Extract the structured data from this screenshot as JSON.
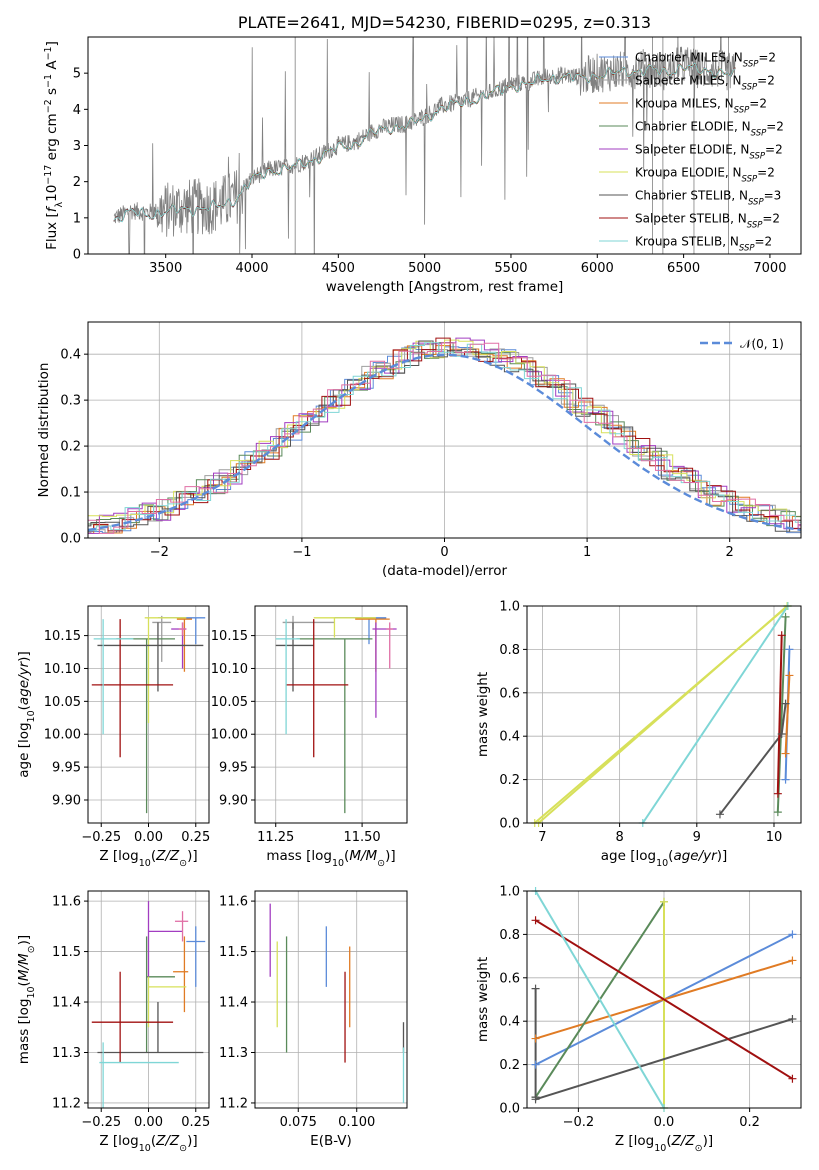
{
  "colors": {
    "chabrier_miles": "#5b8bd9",
    "salpeter_miles": "#9e9e9e",
    "kroupa_miles": "#e07b24",
    "chabrier_elodie": "#5a8a5a",
    "salpeter_elodie": "#a23dc1",
    "kroupa_elodie": "#d7e05a",
    "chabrier_stelib": "#555555",
    "salpeter_stelib": "#a01010",
    "kroupa_stelib": "#7fd6d6",
    "pink": "#e06fa5",
    "data": "#808080",
    "normal": "#5b8bd9"
  },
  "chart_data": [
    {
      "id": "spectrum",
      "type": "line",
      "title": "PLATE=2641, MJD=54230, FIBERID=0295, z=0.313",
      "xlabel": "wavelength [Angstrom, rest frame]",
      "ylabel": "Flux [f_λ 10^-17 erg cm^-2 s^-1 A^-1]",
      "xlim": [
        3050,
        7180
      ],
      "ylim": [
        0,
        6
      ],
      "xticks": [
        "3500",
        "4000",
        "4500",
        "5000",
        "5500",
        "6000",
        "6500",
        "7000"
      ],
      "yticks": [
        "0",
        "1",
        "2",
        "3",
        "4",
        "5"
      ],
      "legend_position": "upper right",
      "legend": [
        "Chabrier MILES, N_SSP=2",
        "Salpeter MILES, N_SSP=2",
        "Kroupa MILES, N_SSP=2",
        "Chabrier ELODIE, N_SSP=2",
        "Salpeter ELODIE, N_SSP=2",
        "Kroupa ELODIE, N_SSP=2",
        "Chabrier STELIB, N_SSP=3",
        "Salpeter STELIB, N_SSP=2",
        "Kroupa STELIB, N_SSP=2"
      ],
      "continuum": {
        "x": [
          3200,
          3300,
          3400,
          3500,
          3600,
          3700,
          3800,
          3900,
          4000,
          4100,
          4200,
          4300,
          4400,
          4500,
          4600,
          4700,
          4800,
          4900,
          5000,
          5100,
          5200,
          5300,
          5400,
          5500,
          5600,
          5700,
          5800,
          5900,
          6000,
          6100,
          6200,
          6300,
          6400,
          6500,
          6600,
          6700,
          6800
        ],
        "y": [
          1.0,
          1.2,
          1.15,
          1.2,
          1.3,
          1.3,
          1.35,
          1.55,
          2.1,
          2.35,
          2.4,
          2.55,
          2.75,
          3.0,
          3.1,
          3.4,
          3.55,
          3.6,
          3.8,
          4.1,
          4.2,
          4.35,
          4.5,
          4.7,
          4.75,
          4.9,
          4.95,
          4.9,
          5.0,
          5.05,
          5.1,
          5.15,
          5.05,
          5.25,
          5.1,
          5.1,
          5.0
        ]
      }
    },
    {
      "id": "residuals",
      "type": "line",
      "xlabel": "(data-model)/error",
      "ylabel": "Normed distribution",
      "xlim": [
        -2.5,
        2.5
      ],
      "ylim": [
        0,
        0.47
      ],
      "xticks": [
        "−2",
        "−1",
        "0",
        "1",
        "2"
      ],
      "yticks": [
        "0.0",
        "0.1",
        "0.2",
        "0.3",
        "0.4"
      ],
      "grid": true,
      "legend": [
        "𝒩(0, 1)"
      ],
      "legend_position": "upper right"
    },
    {
      "id": "age_vs_Z",
      "type": "scatter",
      "xlabel": "Z [log10(Z/Z⊙)]",
      "ylabel": "age  [log10(age/yr)]",
      "xlim": [
        -0.32,
        0.32
      ],
      "ylim": [
        9.865,
        10.195
      ],
      "xticks": [
        "−0.25",
        "0.00",
        "0.25"
      ],
      "yticks": [
        "9.90",
        "9.95",
        "10.00",
        "10.05",
        "10.10",
        "10.15"
      ],
      "grid": true,
      "points": [
        {
          "c": "chabrier_miles",
          "x": 0.25,
          "y": 10.177,
          "xerr": [
            0.2,
            0.05
          ],
          "yerr": [
            0.04,
            0.0
          ]
        },
        {
          "c": "salpeter_miles",
          "x": 0.07,
          "y": 10.17,
          "xerr": [
            0.05,
            0.05
          ],
          "yerr": [
            0.06,
            0.01
          ]
        },
        {
          "c": "kroupa_miles",
          "x": 0.19,
          "y": 10.175,
          "xerr": [
            0.04,
            0.04
          ],
          "yerr": [
            0.08,
            0.0
          ]
        },
        {
          "c": "chabrier_elodie",
          "x": -0.01,
          "y": 10.145,
          "xerr": [
            0.16,
            0.15
          ],
          "yerr": [
            0.265,
            0.0
          ]
        },
        {
          "c": "salpeter_elodie",
          "x": 0.18,
          "y": 10.16,
          "xerr": [
            0.06,
            0.02
          ],
          "yerr": [
            0.06,
            0.01
          ]
        },
        {
          "c": "kroupa_elodie",
          "x": 0.0,
          "y": 10.177,
          "xerr": [
            0.02,
            0.2
          ],
          "yerr": [
            0.16,
            0.0
          ]
        },
        {
          "c": "chabrier_stelib",
          "x": 0.05,
          "y": 10.135,
          "xerr": [
            0.32,
            0.24
          ],
          "yerr": [
            0.07,
            0.035
          ]
        },
        {
          "c": "salpeter_stelib",
          "x": -0.15,
          "y": 10.075,
          "xerr": [
            0.15,
            0.28
          ],
          "yerr": [
            0.11,
            0.1
          ]
        },
        {
          "c": "kroupa_stelib",
          "x": -0.24,
          "y": 10.145,
          "xerr": [
            0.05,
            0.16
          ],
          "yerr": [
            0.145,
            0.03
          ]
        },
        {
          "c": "pink",
          "x": 0.18,
          "y": 10.16,
          "xerr": [
            0.02,
            0.02
          ],
          "yerr": [
            0.01,
            0.01
          ]
        }
      ]
    },
    {
      "id": "age_vs_mass",
      "type": "scatter",
      "xlabel": "mass [log10(M/M⊙)]",
      "ylabel": "",
      "xlim": [
        11.19,
        11.63
      ],
      "ylim": [
        9.865,
        10.195
      ],
      "xticks": [
        "11.25",
        "11.50"
      ],
      "yticks": [
        "9.90",
        "9.95",
        "10.00",
        "10.05",
        "10.10",
        "10.15"
      ],
      "grid": true,
      "points": [
        {
          "c": "chabrier_miles",
          "x": 11.52,
          "y": 10.177,
          "xerr": [
            0.1,
            0.05
          ],
          "yerr": [
            0.04,
            0.0
          ]
        },
        {
          "c": "salpeter_miles",
          "x": 11.3,
          "y": 10.17,
          "xerr": [
            0.03,
            0.12
          ],
          "yerr": [
            0.01,
            0.01
          ]
        },
        {
          "c": "kroupa_miles",
          "x": 11.54,
          "y": 10.175,
          "xerr": [
            0.06,
            0.04
          ],
          "yerr": [
            0.08,
            0.0
          ]
        },
        {
          "c": "chabrier_elodie",
          "x": 11.45,
          "y": 10.145,
          "xerr": [
            0.14,
            0.08
          ],
          "yerr": [
            0.265,
            0.0
          ]
        },
        {
          "c": "salpeter_elodie",
          "x": 11.54,
          "y": 10.16,
          "xerr": [
            0.01,
            0.06
          ],
          "yerr": [
            0.135,
            0.01
          ]
        },
        {
          "c": "kroupa_elodie",
          "x": 11.42,
          "y": 10.177,
          "xerr": [
            0.06,
            0.12
          ],
          "yerr": [
            0.03,
            0.0
          ]
        },
        {
          "c": "chabrier_stelib",
          "x": 11.3,
          "y": 10.135,
          "xerr": [
            0.05,
            0.06
          ],
          "yerr": [
            0.07,
            0.035
          ]
        },
        {
          "c": "salpeter_stelib",
          "x": 11.36,
          "y": 10.075,
          "xerr": [
            0.08,
            0.1
          ],
          "yerr": [
            0.11,
            0.1
          ]
        },
        {
          "c": "kroupa_stelib",
          "x": 11.28,
          "y": 10.145,
          "xerr": [
            0.03,
            0.04
          ],
          "yerr": [
            0.145,
            0.03
          ]
        },
        {
          "c": "pink",
          "x": 11.58,
          "y": 10.16,
          "xerr": [
            0.01,
            0.01
          ],
          "yerr": [
            0.06,
            0.01
          ]
        }
      ]
    },
    {
      "id": "weight_vs_age",
      "type": "line",
      "xlabel": "age  [log10(age/yr)]",
      "ylabel": "mass weight",
      "xlim": [
        6.8,
        10.35
      ],
      "ylim": [
        0,
        1
      ],
      "xticks": [
        "7",
        "8",
        "9",
        "10"
      ],
      "yticks": [
        "0.0",
        "0.2",
        "0.4",
        "0.6",
        "0.8",
        "1.0"
      ],
      "grid": true,
      "series": [
        {
          "c": "chabrier_miles",
          "x": [
            10.15,
            10.2
          ],
          "y": [
            0.2,
            0.8
          ]
        },
        {
          "c": "kroupa_miles",
          "x": [
            10.15,
            10.2
          ],
          "y": [
            0.32,
            0.68
          ]
        },
        {
          "c": "chabrier_elodie",
          "x": [
            10.05,
            10.15
          ],
          "y": [
            0.05,
            0.95
          ]
        },
        {
          "c": "kroupa_elodie",
          "x": [
            6.9,
            10.18
          ],
          "y": [
            0.0,
            1.0
          ]
        },
        {
          "c": "kroupa_elodie",
          "x": [
            6.95,
            10.17
          ],
          "y": [
            0.0,
            1.0
          ]
        },
        {
          "c": "chabrier_stelib",
          "x": [
            9.3,
            10.1,
            10.15
          ],
          "y": [
            0.04,
            0.41,
            0.55
          ]
        },
        {
          "c": "salpeter_stelib",
          "x": [
            10.05,
            10.1
          ],
          "y": [
            0.135,
            0.865
          ]
        },
        {
          "c": "kroupa_stelib",
          "x": [
            8.3,
            10.18
          ],
          "y": [
            0.0,
            1.0
          ]
        }
      ]
    },
    {
      "id": "mass_vs_Z",
      "type": "scatter",
      "xlabel": "Z [log10(Z/Z⊙)]",
      "ylabel": "mass [log10(M/M⊙)]",
      "xlim": [
        -0.32,
        0.32
      ],
      "ylim": [
        11.19,
        11.62
      ],
      "xticks": [
        "−0.25",
        "0.00",
        "0.25"
      ],
      "yticks": [
        "11.2",
        "11.3",
        "11.4",
        "11.5",
        "11.6"
      ],
      "grid": true,
      "points": [
        {
          "c": "chabrier_miles",
          "x": 0.25,
          "y": 11.52,
          "xerr": [
            0.05,
            0.05
          ],
          "yerr": [
            0.09,
            0.03
          ]
        },
        {
          "c": "kroupa_miles",
          "x": 0.19,
          "y": 11.46,
          "xerr": [
            0.06,
            0.02
          ],
          "yerr": [
            0.08,
            0.07
          ]
        },
        {
          "c": "chabrier_elodie",
          "x": -0.01,
          "y": 11.45,
          "xerr": [
            0.0,
            0.15
          ],
          "yerr": [
            0.15,
            0.08
          ]
        },
        {
          "c": "salpeter_elodie",
          "x": 0.0,
          "y": 11.54,
          "xerr": [
            0.0,
            0.18
          ],
          "yerr": [
            0.09,
            0.06
          ]
        },
        {
          "c": "kroupa_elodie",
          "x": 0.0,
          "y": 11.43,
          "xerr": [
            0.0,
            0.2
          ],
          "yerr": [
            0.08,
            0.02
          ]
        },
        {
          "c": "chabrier_stelib",
          "x": 0.05,
          "y": 11.3,
          "xerr": [
            0.32,
            0.24
          ],
          "yerr": [
            0.0,
            0.1
          ]
        },
        {
          "c": "salpeter_stelib",
          "x": -0.15,
          "y": 11.36,
          "xerr": [
            0.15,
            0.28
          ],
          "yerr": [
            0.08,
            0.1
          ]
        },
        {
          "c": "kroupa_stelib",
          "x": -0.24,
          "y": 11.28,
          "xerr": [
            0.02,
            0.4
          ],
          "yerr": [
            0.09,
            0.04
          ]
        },
        {
          "c": "pink",
          "x": 0.18,
          "y": 11.56,
          "xerr": [
            0.04,
            0.03
          ],
          "yerr": [
            0.04,
            0.02
          ]
        }
      ]
    },
    {
      "id": "mass_vs_ebv",
      "type": "scatter",
      "xlabel": "E(B-V)",
      "ylabel": "",
      "xlim": [
        0.0565,
        0.1215
      ],
      "ylim": [
        11.19,
        11.62
      ],
      "xticks": [
        "0.075",
        "0.100"
      ],
      "yticks": [
        "11.2",
        "11.3",
        "11.4",
        "11.5",
        "11.6"
      ],
      "grid": true,
      "points": [
        {
          "c": "salpeter_elodie",
          "x": 0.063,
          "y": 11.55,
          "yerr": [
            0.1,
            0.045
          ]
        },
        {
          "c": "kroupa_elodie",
          "x": 0.066,
          "y": 11.43,
          "yerr": [
            0.08,
            0.09
          ]
        },
        {
          "c": "chabrier_elodie",
          "x": 0.07,
          "y": 11.43,
          "yerr": [
            0.13,
            0.1
          ]
        },
        {
          "c": "chabrier_miles",
          "x": 0.087,
          "y": 11.5,
          "yerr": [
            0.07,
            0.05
          ]
        },
        {
          "c": "kroupa_miles",
          "x": 0.097,
          "y": 11.44,
          "yerr": [
            0.09,
            0.07
          ]
        },
        {
          "c": "salpeter_stelib",
          "x": 0.095,
          "y": 11.37,
          "yerr": [
            0.09,
            0.09
          ]
        },
        {
          "c": "chabrier_stelib",
          "x": 0.12,
          "y": 11.33,
          "yerr": [
            0.03,
            0.03
          ]
        },
        {
          "c": "kroupa_stelib",
          "x": 0.12,
          "y": 11.25,
          "yerr": [
            0.05,
            0.06
          ]
        }
      ]
    },
    {
      "id": "weight_vs_Z",
      "type": "line",
      "xlabel": "Z [log10(Z/Z⊙)]",
      "ylabel": "mass weight",
      "xlim": [
        -0.32,
        0.32
      ],
      "ylim": [
        0,
        1
      ],
      "xticks": [
        "−0.2",
        "0.0",
        "0.2"
      ],
      "yticks": [
        "0.0",
        "0.2",
        "0.4",
        "0.6",
        "0.8",
        "1.0"
      ],
      "grid": true,
      "series": [
        {
          "c": "chabrier_miles",
          "x": [
            -0.3,
            0.3
          ],
          "y": [
            0.2,
            0.8
          ]
        },
        {
          "c": "kroupa_miles",
          "x": [
            -0.3,
            0.3
          ],
          "y": [
            0.32,
            0.68
          ]
        },
        {
          "c": "chabrier_elodie",
          "x": [
            -0.3,
            0.0
          ],
          "y": [
            0.05,
            0.95
          ]
        },
        {
          "c": "kroupa_elodie",
          "x": [
            0.0,
            0.0
          ],
          "y": [
            0.0,
            0.95
          ]
        },
        {
          "c": "chabrier_stelib",
          "x": [
            -0.3,
            0.3
          ],
          "y": [
            0.04,
            0.41
          ]
        },
        {
          "c": "chabrier_stelib",
          "x": [
            -0.3,
            -0.3
          ],
          "y": [
            0.05,
            0.55
          ]
        },
        {
          "c": "salpeter_stelib",
          "x": [
            -0.3,
            0.3
          ],
          "y": [
            0.865,
            0.135
          ]
        },
        {
          "c": "kroupa_stelib",
          "x": [
            -0.3,
            0.0
          ],
          "y": [
            1.0,
            0.0
          ]
        }
      ]
    }
  ]
}
